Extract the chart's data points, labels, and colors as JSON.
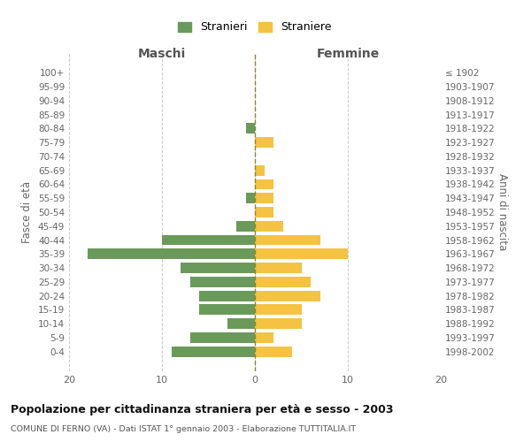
{
  "age_groups": [
    "0-4",
    "5-9",
    "10-14",
    "15-19",
    "20-24",
    "25-29",
    "30-34",
    "35-39",
    "40-44",
    "45-49",
    "50-54",
    "55-59",
    "60-64",
    "65-69",
    "70-74",
    "75-79",
    "80-84",
    "85-89",
    "90-94",
    "95-99",
    "100+"
  ],
  "birth_years": [
    "1998-2002",
    "1993-1997",
    "1988-1992",
    "1983-1987",
    "1978-1982",
    "1973-1977",
    "1968-1972",
    "1963-1967",
    "1958-1962",
    "1953-1957",
    "1948-1952",
    "1943-1947",
    "1938-1942",
    "1933-1937",
    "1928-1932",
    "1923-1927",
    "1918-1922",
    "1913-1917",
    "1908-1912",
    "1903-1907",
    "≤ 1902"
  ],
  "maschi": [
    9,
    7,
    3,
    6,
    6,
    7,
    8,
    18,
    10,
    2,
    0,
    1,
    0,
    0,
    0,
    0,
    1,
    0,
    0,
    0,
    0
  ],
  "femmine": [
    4,
    2,
    5,
    5,
    7,
    6,
    5,
    10,
    7,
    3,
    2,
    2,
    2,
    1,
    0,
    2,
    0,
    0,
    0,
    0,
    0
  ],
  "color_maschi": "#6a9a5a",
  "color_femmine": "#f5c242",
  "title": "Popolazione per cittadinanza straniera per età e sesso - 2003",
  "subtitle": "COMUNE DI FERNO (VA) - Dati ISTAT 1° gennaio 2003 - Elaborazione TUTTITALIA.IT",
  "xlabel_maschi": "Maschi",
  "xlabel_femmine": "Femmine",
  "ylabel_left": "Fasce di età",
  "ylabel_right": "Anni di nascita",
  "legend_maschi": "Stranieri",
  "legend_femmine": "Straniere",
  "xlim": 20,
  "background_color": "#ffffff",
  "grid_color": "#cccccc"
}
